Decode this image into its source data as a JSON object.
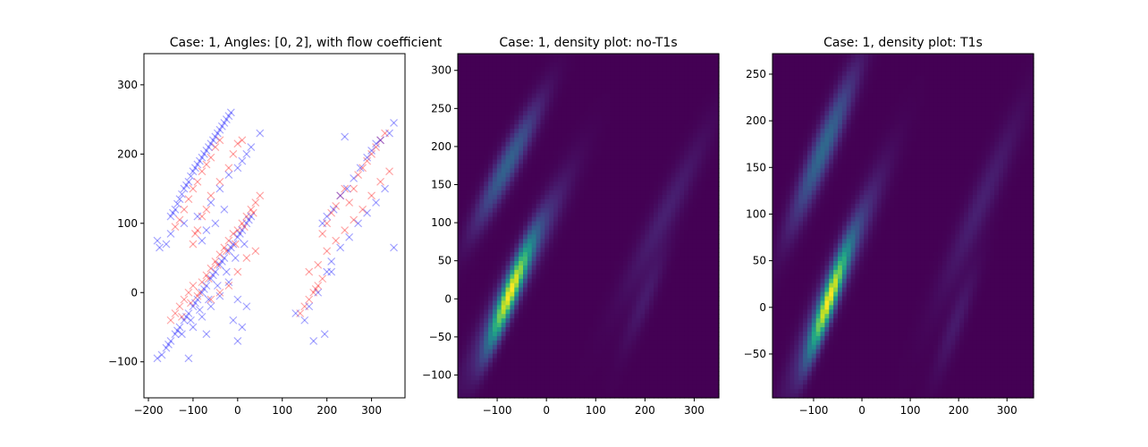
{
  "chart_data": [
    {
      "type": "scatter",
      "title": "Case: 1, Angles: [0, 2], with flow coefficient",
      "xlabel": "",
      "ylabel": "",
      "xlim": [
        -210,
        375
      ],
      "ylim": [
        -152,
        345
      ],
      "xticks": [
        -200,
        -100,
        0,
        100,
        200,
        300
      ],
      "yticks": [
        -100,
        0,
        100,
        200,
        300
      ],
      "grid": false,
      "marker": "x",
      "series": [
        {
          "color": "#ff0000",
          "points": [
            [
              -140,
              95
            ],
            [
              -120,
              120
            ],
            [
              -100,
              150
            ],
            [
              -80,
              175
            ],
            [
              -60,
              195
            ],
            [
              -50,
              210
            ],
            [
              -40,
              220
            ],
            [
              -130,
              105
            ],
            [
              -90,
              160
            ],
            [
              -70,
              185
            ],
            [
              -110,
              135
            ],
            [
              -100,
              70
            ],
            [
              -95,
              85
            ],
            [
              -90,
              90
            ],
            [
              -80,
              110
            ],
            [
              -70,
              120
            ],
            [
              -60,
              140
            ],
            [
              -40,
              160
            ],
            [
              -20,
              180
            ],
            [
              -10,
              200
            ],
            [
              0,
              215
            ],
            [
              10,
              220
            ],
            [
              -140,
              -30
            ],
            [
              -130,
              -20
            ],
            [
              -120,
              -10
            ],
            [
              -110,
              0
            ],
            [
              -100,
              10
            ],
            [
              -90,
              -5
            ],
            [
              -80,
              15
            ],
            [
              -70,
              25
            ],
            [
              -60,
              35
            ],
            [
              -50,
              45
            ],
            [
              -40,
              55
            ],
            [
              -30,
              65
            ],
            [
              -20,
              75
            ],
            [
              -10,
              85
            ],
            [
              0,
              90
            ],
            [
              10,
              100
            ],
            [
              20,
              110
            ],
            [
              30,
              120
            ],
            [
              40,
              130
            ],
            [
              50,
              140
            ],
            [
              -150,
              -40
            ],
            [
              -125,
              -35
            ],
            [
              -105,
              -15
            ],
            [
              -85,
              0
            ],
            [
              -65,
              20
            ],
            [
              -45,
              40
            ],
            [
              -25,
              60
            ],
            [
              -5,
              70
            ],
            [
              15,
              95
            ],
            [
              35,
              115
            ],
            [
              -60,
              -10
            ],
            [
              -40,
              0
            ],
            [
              -20,
              10
            ],
            [
              0,
              30
            ],
            [
              20,
              50
            ],
            [
              40,
              60
            ],
            [
              160,
              -10
            ],
            [
              170,
              0
            ],
            [
              180,
              10
            ],
            [
              190,
              20
            ],
            [
              150,
              -20
            ],
            [
              140,
              -30
            ],
            [
              175,
              5
            ],
            [
              200,
              100
            ],
            [
              210,
              115
            ],
            [
              220,
              125
            ],
            [
              230,
              140
            ],
            [
              240,
              150
            ],
            [
              190,
              85
            ],
            [
              200,
              60
            ],
            [
              220,
              75
            ],
            [
              240,
              90
            ],
            [
              260,
              105
            ],
            [
              280,
              120
            ],
            [
              300,
              140
            ],
            [
              320,
              160
            ],
            [
              340,
              175
            ],
            [
              260,
              150
            ],
            [
              270,
              170
            ],
            [
              280,
              180
            ],
            [
              290,
              190
            ],
            [
              300,
              200
            ],
            [
              310,
              210
            ],
            [
              320,
              220
            ],
            [
              330,
              230
            ],
            [
              250,
              130
            ],
            [
              180,
              40
            ],
            [
              160,
              30
            ]
          ]
        },
        {
          "color": "#0000ff",
          "points": [
            [
              -150,
              110
            ],
            [
              -140,
              120
            ],
            [
              -130,
              135
            ],
            [
              -120,
              150
            ],
            [
              -110,
              160
            ],
            [
              -100,
              175
            ],
            [
              -90,
              185
            ],
            [
              -80,
              195
            ],
            [
              -70,
              205
            ],
            [
              -60,
              215
            ],
            [
              -50,
              225
            ],
            [
              -40,
              235
            ],
            [
              -30,
              245
            ],
            [
              -20,
              255
            ],
            [
              -15,
              260
            ],
            [
              -145,
              115
            ],
            [
              -135,
              128
            ],
            [
              -125,
              142
            ],
            [
              -115,
              155
            ],
            [
              -105,
              168
            ],
            [
              -95,
              180
            ],
            [
              -85,
              190
            ],
            [
              -75,
              200
            ],
            [
              -65,
              210
            ],
            [
              -55,
              220
            ],
            [
              -45,
              230
            ],
            [
              -35,
              240
            ],
            [
              -25,
              250
            ],
            [
              -160,
              70
            ],
            [
              -175,
              65
            ],
            [
              -180,
              75
            ],
            [
              -150,
              85
            ],
            [
              -120,
              100
            ],
            [
              -90,
              110
            ],
            [
              -60,
              130
            ],
            [
              -40,
              150
            ],
            [
              -20,
              170
            ],
            [
              0,
              180
            ],
            [
              10,
              190
            ],
            [
              20,
              200
            ],
            [
              30,
              210
            ],
            [
              50,
              230
            ],
            [
              -30,
              120
            ],
            [
              -50,
              100
            ],
            [
              -70,
              90
            ],
            [
              -80,
              75
            ],
            [
              -170,
              -90
            ],
            [
              -160,
              -80
            ],
            [
              -150,
              -70
            ],
            [
              -140,
              -60
            ],
            [
              -130,
              -50
            ],
            [
              -120,
              -40
            ],
            [
              -110,
              -30
            ],
            [
              -100,
              -20
            ],
            [
              -90,
              -10
            ],
            [
              -80,
              0
            ],
            [
              -70,
              10
            ],
            [
              -60,
              20
            ],
            [
              -50,
              30
            ],
            [
              -40,
              40
            ],
            [
              -30,
              50
            ],
            [
              -20,
              60
            ],
            [
              -10,
              70
            ],
            [
              0,
              80
            ],
            [
              10,
              90
            ],
            [
              20,
              100
            ],
            [
              30,
              110
            ],
            [
              -155,
              -75
            ],
            [
              -135,
              -55
            ],
            [
              -115,
              -35
            ],
            [
              -95,
              -15
            ],
            [
              -75,
              5
            ],
            [
              -55,
              25
            ],
            [
              -35,
              45
            ],
            [
              -15,
              65
            ],
            [
              5,
              85
            ],
            [
              25,
              105
            ],
            [
              -125,
              -60
            ],
            [
              -105,
              -40
            ],
            [
              -85,
              -25
            ],
            [
              -65,
              -10
            ],
            [
              -45,
              10
            ],
            [
              -25,
              30
            ],
            [
              -5,
              50
            ],
            [
              15,
              70
            ],
            [
              -100,
              -50
            ],
            [
              -80,
              -35
            ],
            [
              -60,
              -20
            ],
            [
              -40,
              -5
            ],
            [
              -20,
              15
            ],
            [
              -110,
              -95
            ],
            [
              -180,
              -95
            ],
            [
              -70,
              -60
            ],
            [
              0,
              -70
            ],
            [
              10,
              -50
            ],
            [
              -10,
              -40
            ],
            [
              20,
              -20
            ],
            [
              0,
              -10
            ],
            [
              130,
              -30
            ],
            [
              150,
              -40
            ],
            [
              160,
              -20
            ],
            [
              180,
              0
            ],
            [
              200,
              30
            ],
            [
              210,
              45
            ],
            [
              230,
              65
            ],
            [
              250,
              80
            ],
            [
              270,
              100
            ],
            [
              290,
              115
            ],
            [
              310,
              130
            ],
            [
              330,
              150
            ],
            [
              190,
              100
            ],
            [
              200,
              110
            ],
            [
              215,
              120
            ],
            [
              230,
              140
            ],
            [
              245,
              150
            ],
            [
              260,
              165
            ],
            [
              275,
              180
            ],
            [
              290,
              195
            ],
            [
              300,
              205
            ],
            [
              310,
              215
            ],
            [
              320,
              220
            ],
            [
              340,
              230
            ],
            [
              350,
              245
            ],
            [
              350,
              65
            ],
            [
              240,
              225
            ],
            [
              170,
              -70
            ],
            [
              210,
              30
            ],
            [
              195,
              -60
            ]
          ]
        }
      ]
    },
    {
      "type": "heatmap",
      "title": "Case: 1, density plot: no-T1s",
      "xlim": [
        -180,
        350
      ],
      "ylim": [
        -130,
        322
      ],
      "xticks": [
        -100,
        0,
        100,
        200,
        300
      ],
      "yticks": [
        -100,
        -50,
        0,
        50,
        100,
        150,
        200,
        250,
        300
      ],
      "colormap": "viridis",
      "blobs": [
        {
          "x": -75,
          "y": 5,
          "sx": 30,
          "sy": 48,
          "corr": 0.93,
          "amp": 1.0
        },
        {
          "x": -60,
          "y": 30,
          "sx": 60,
          "sy": 75,
          "corr": 0.95,
          "amp": 0.35
        },
        {
          "x": -80,
          "y": 175,
          "sx": 45,
          "sy": 55,
          "corr": 0.93,
          "amp": 0.42
        },
        {
          "x": 240,
          "y": 110,
          "sx": 60,
          "sy": 75,
          "corr": 0.95,
          "amp": 0.12
        },
        {
          "x": 200,
          "y": 0,
          "sx": 30,
          "sy": 45,
          "corr": 0.9,
          "amp": 0.1
        }
      ]
    },
    {
      "type": "heatmap",
      "title": "Case: 1, density plot: T1s",
      "xlim": [
        -185,
        355
      ],
      "ylim": [
        -97,
        272
      ],
      "xticks": [
        -100,
        0,
        100,
        200,
        300
      ],
      "yticks": [
        -50,
        0,
        50,
        100,
        150,
        200,
        250
      ],
      "colormap": "viridis",
      "blobs": [
        {
          "x": -70,
          "y": 5,
          "sx": 28,
          "sy": 40,
          "corr": 0.93,
          "amp": 1.0
        },
        {
          "x": -55,
          "y": 30,
          "sx": 58,
          "sy": 68,
          "corr": 0.95,
          "amp": 0.35
        },
        {
          "x": -80,
          "y": 170,
          "sx": 45,
          "sy": 55,
          "corr": 0.93,
          "amp": 0.45
        },
        {
          "x": 245,
          "y": 110,
          "sx": 60,
          "sy": 70,
          "corr": 0.95,
          "amp": 0.12
        },
        {
          "x": 195,
          "y": -15,
          "sx": 30,
          "sy": 40,
          "corr": 0.9,
          "amp": 0.1
        }
      ]
    }
  ]
}
